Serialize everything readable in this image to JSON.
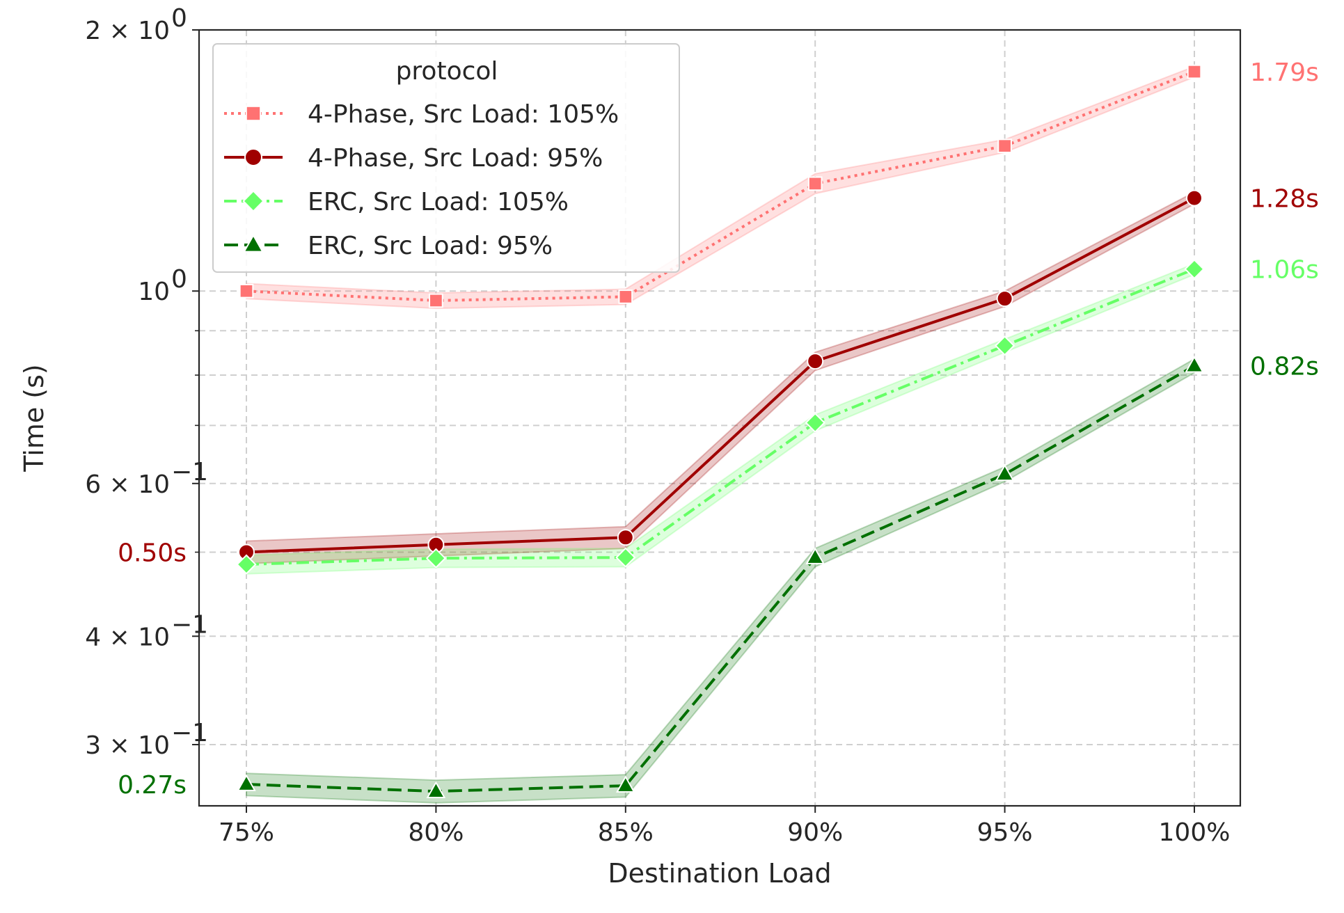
{
  "chart_data": {
    "type": "line",
    "xlabel": "Destination Load",
    "ylabel": "Time (s)",
    "categories": [
      "75%",
      "80%",
      "85%",
      "90%",
      "95%",
      "100%"
    ],
    "y_scale": "log",
    "ylim": [
      0.255,
      2.0
    ],
    "yticks": [
      {
        "value": 2.0,
        "base": "2 × 10",
        "exp": "0"
      },
      {
        "value": 1.0,
        "base": "10",
        "exp": "0"
      },
      {
        "value": 0.6,
        "base": "6 × 10",
        "exp": "−1"
      },
      {
        "value": 0.4,
        "base": "4 × 10",
        "exp": "−1"
      },
      {
        "value": 0.3,
        "base": "3 × 10",
        "exp": "−1"
      }
    ],
    "minor_yticks": [
      0.9,
      0.8,
      0.7,
      0.5
    ],
    "grid": true,
    "legend": {
      "title": "protocol",
      "position": "top-left"
    },
    "series": [
      {
        "name": "4-Phase, Src Load: 105%",
        "color": "#ff7272",
        "marker": "square",
        "dash": "dotted",
        "values": [
          1.0,
          0.975,
          0.985,
          1.33,
          1.47,
          1.79
        ],
        "band": [
          0.02,
          0.02,
          0.02,
          0.035,
          0.025,
          0.025
        ]
      },
      {
        "name": "4-Phase, Src Load: 95%",
        "color": "#a00000",
        "marker": "circle",
        "dash": "solid",
        "values": [
          0.5,
          0.51,
          0.52,
          0.83,
          0.98,
          1.28
        ],
        "band": [
          0.015,
          0.015,
          0.015,
          0.02,
          0.02,
          0.02
        ]
      },
      {
        "name": "ERC, Src Load: 105%",
        "color": "#66ff66",
        "marker": "diamond",
        "dash": "dashdot",
        "values": [
          0.484,
          0.492,
          0.493,
          0.705,
          0.865,
          1.06
        ],
        "band": [
          0.012,
          0.012,
          0.012,
          0.015,
          0.015,
          0.015
        ]
      },
      {
        "name": "ERC, Src Load: 95%",
        "color": "#007000",
        "marker": "triangle",
        "dash": "dashed",
        "values": [
          0.27,
          0.265,
          0.269,
          0.493,
          0.615,
          0.82
        ],
        "band": [
          0.008,
          0.008,
          0.008,
          0.012,
          0.012,
          0.015
        ]
      }
    ],
    "annotations": [
      {
        "text": "1.79s",
        "value": 1.79,
        "side": "right",
        "color": "#ff7272"
      },
      {
        "text": "1.28s",
        "value": 1.28,
        "side": "right",
        "color": "#a00000"
      },
      {
        "text": "1.06s",
        "value": 1.06,
        "side": "right",
        "color": "#66ff66"
      },
      {
        "text": "0.82s",
        "value": 0.82,
        "side": "right",
        "color": "#007000"
      },
      {
        "text": "0.50s",
        "value": 0.5,
        "side": "left",
        "color": "#a00000"
      },
      {
        "text": "0.27s",
        "value": 0.27,
        "side": "left",
        "color": "#007000"
      }
    ]
  }
}
